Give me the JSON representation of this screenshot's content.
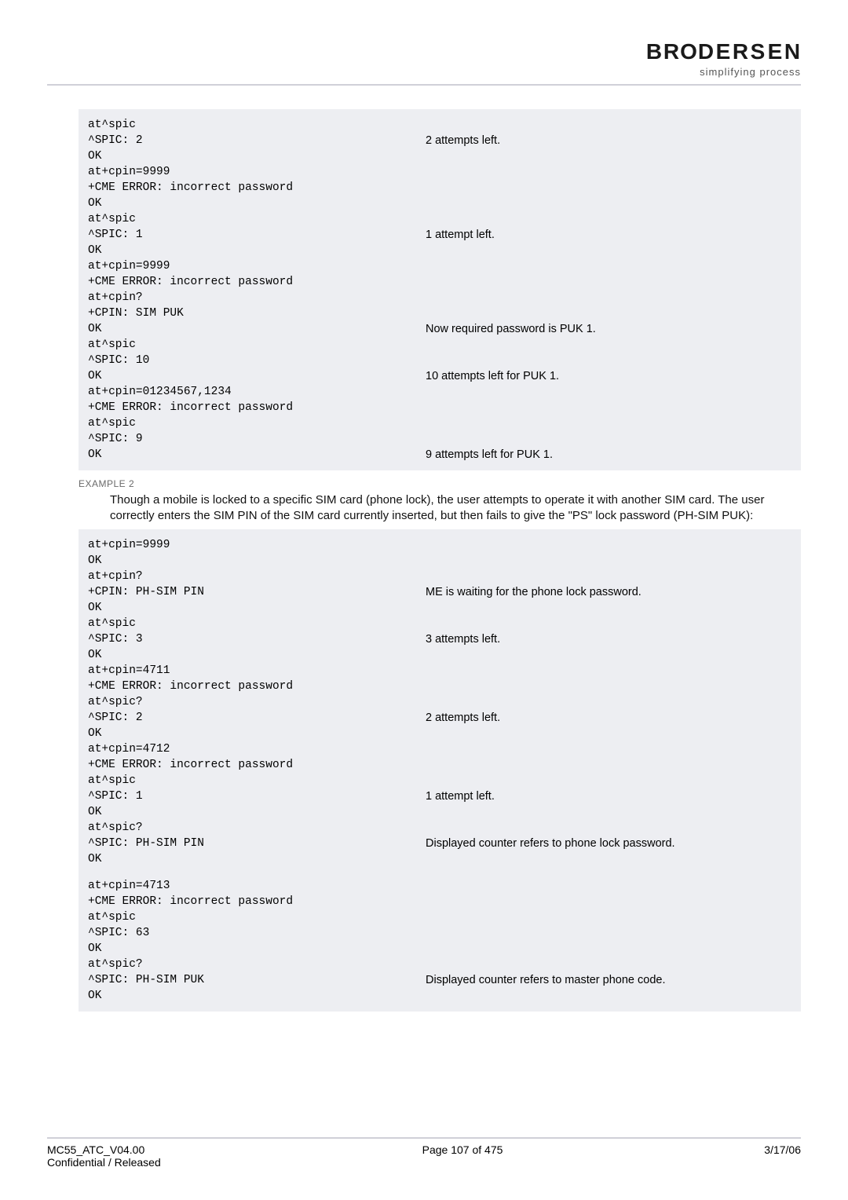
{
  "header": {
    "logo_letters": [
      "B",
      "R",
      "O",
      "D",
      "E",
      "R",
      "S",
      "E",
      "N"
    ],
    "tagline": "simplifying process"
  },
  "block1": [
    {
      "l": "at^spic",
      "r": ""
    },
    {
      "l": "^SPIC: 2",
      "r": "2 attempts left."
    },
    {
      "l": "OK",
      "r": ""
    },
    {
      "l": "at+cpin=9999",
      "r": ""
    },
    {
      "l": "+CME ERROR: incorrect password",
      "r": ""
    },
    {
      "l": "OK",
      "r": ""
    },
    {
      "l": "at^spic",
      "r": ""
    },
    {
      "l": "^SPIC: 1",
      "r": "1 attempt left."
    },
    {
      "l": "OK",
      "r": ""
    },
    {
      "l": "at+cpin=9999",
      "r": ""
    },
    {
      "l": "+CME ERROR: incorrect password",
      "r": ""
    },
    {
      "l": "at+cpin?",
      "r": ""
    },
    {
      "l": "+CPIN: SIM PUK",
      "r": ""
    },
    {
      "l": "OK",
      "r": "Now required password is PUK 1."
    },
    {
      "l": "at^spic",
      "r": ""
    },
    {
      "l": "^SPIC: 10",
      "r": ""
    },
    {
      "l": "OK",
      "r": "10 attempts left for PUK 1."
    },
    {
      "l": "at+cpin=01234567,1234",
      "r": ""
    },
    {
      "l": "+CME ERROR: incorrect password",
      "r": ""
    },
    {
      "l": "at^spic",
      "r": ""
    },
    {
      "l": "^SPIC: 9",
      "r": ""
    },
    {
      "l": "OK",
      "r": "9 attempts left for PUK 1."
    }
  ],
  "example2": {
    "label": "EXAMPLE 2",
    "desc": "Though a mobile is locked to a specific SIM card (phone lock), the user attempts to operate it with another SIM card. The user correctly enters the SIM PIN of the SIM card currently inserted, but then fails to give the \"PS\" lock password (PH-SIM PUK):"
  },
  "block2": [
    {
      "l": "at+cpin=9999",
      "r": ""
    },
    {
      "l": "OK",
      "r": ""
    },
    {
      "l": "at+cpin?",
      "r": ""
    },
    {
      "l": "+CPIN: PH-SIM PIN",
      "r": "ME is waiting for the phone lock password."
    },
    {
      "l": "OK",
      "r": ""
    },
    {
      "l": "at^spic",
      "r": ""
    },
    {
      "l": "^SPIC: 3",
      "r": "3 attempts left."
    },
    {
      "l": "OK",
      "r": ""
    },
    {
      "l": "at+cpin=4711",
      "r": ""
    },
    {
      "l": "+CME ERROR: incorrect password",
      "r": ""
    },
    {
      "l": "at^spic?",
      "r": ""
    },
    {
      "l": "^SPIC: 2",
      "r": "2 attempts left."
    },
    {
      "l": "OK",
      "r": ""
    },
    {
      "l": "at+cpin=4712",
      "r": ""
    },
    {
      "l": "+CME ERROR: incorrect password",
      "r": ""
    },
    {
      "l": "at^spic",
      "r": ""
    },
    {
      "l": "^SPIC: 1",
      "r": "1 attempt left."
    },
    {
      "l": "OK",
      "r": ""
    },
    {
      "l": "at^spic?",
      "r": ""
    },
    {
      "l": "^SPIC: PH-SIM PIN",
      "r": "Displayed counter refers to phone lock password."
    },
    {
      "l": "OK",
      "r": ""
    },
    {
      "l": "",
      "r": "",
      "blank": true
    },
    {
      "l": "at+cpin=4713",
      "r": ""
    },
    {
      "l": "+CME ERROR: incorrect password",
      "r": ""
    },
    {
      "l": "at^spic",
      "r": ""
    },
    {
      "l": "^SPIC: 63",
      "r": ""
    },
    {
      "l": "OK",
      "r": ""
    },
    {
      "l": "at^spic?",
      "r": ""
    },
    {
      "l": "^SPIC: PH-SIM PUK",
      "r": "Displayed counter refers to master phone code."
    },
    {
      "l": "OK",
      "r": ""
    }
  ],
  "footer": {
    "left1": "MC55_ATC_V04.00",
    "left2": "Confidential / Released",
    "center": "Page 107 of 475",
    "right": "3/17/06"
  }
}
